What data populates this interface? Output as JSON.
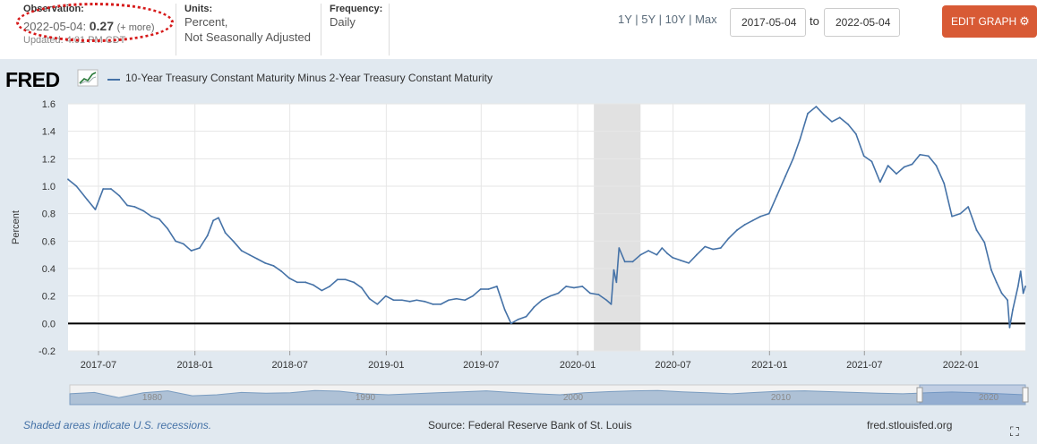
{
  "header": {
    "observation_label": "Observation:",
    "observation_date": "2022-05-04:",
    "observation_value": "0.27",
    "observation_more": "(+ more)",
    "updated": "Updated: 4:01 PM CDT",
    "units_label": "Units:",
    "units_line1": "Percent,",
    "units_line2": "Not Seasonally Adjusted",
    "frequency_label": "Frequency:",
    "frequency_value": "Daily",
    "ranges": [
      "1Y",
      "5Y",
      "10Y",
      "Max"
    ],
    "range_separator": " | ",
    "date_from": "2017-05-04",
    "date_to_label": "to",
    "date_to": "2022-05-04",
    "edit_button": "EDIT GRAPH",
    "annotation_color": "#d61a1a"
  },
  "logo": {
    "text": "FRED",
    "icon": "trend-chart-icon"
  },
  "legend": {
    "series_name": "10-Year Treasury Constant Maturity Minus 2-Year Treasury Constant Maturity",
    "color": "#4572a7"
  },
  "chart_data": {
    "type": "line",
    "ylabel": "Percent",
    "ylim": [
      -0.2,
      1.6
    ],
    "yticks": [
      "1.6",
      "1.4",
      "1.2",
      "1.0",
      "0.8",
      "0.6",
      "0.4",
      "0.2",
      "0.0",
      "-0.2"
    ],
    "xticks": [
      "2017-07",
      "2018-01",
      "2018-07",
      "2019-01",
      "2019-07",
      "2020-01",
      "2020-07",
      "2021-01",
      "2021-07",
      "2022-01"
    ],
    "xlim": [
      "2017-05-04",
      "2022-05-04"
    ],
    "recession": {
      "start": "2020-02-01",
      "end": "2020-04-30"
    },
    "zero_line": true,
    "series": [
      {
        "name": "10-Year Treasury Constant Maturity Minus 2-Year Treasury Constant Maturity",
        "color": "#4572a7",
        "x": [
          "2017-05-04",
          "2017-05-20",
          "2017-06-10",
          "2017-06-25",
          "2017-07-10",
          "2017-07-25",
          "2017-08-10",
          "2017-08-25",
          "2017-09-08",
          "2017-09-25",
          "2017-10-10",
          "2017-10-25",
          "2017-11-10",
          "2017-11-25",
          "2017-12-10",
          "2017-12-25",
          "2018-01-10",
          "2018-01-25",
          "2018-02-05",
          "2018-02-15",
          "2018-02-28",
          "2018-03-15",
          "2018-03-31",
          "2018-04-15",
          "2018-04-30",
          "2018-05-15",
          "2018-05-31",
          "2018-06-15",
          "2018-06-30",
          "2018-07-15",
          "2018-07-31",
          "2018-08-15",
          "2018-08-31",
          "2018-09-15",
          "2018-09-30",
          "2018-10-15",
          "2018-10-31",
          "2018-11-15",
          "2018-11-30",
          "2018-12-15",
          "2018-12-31",
          "2019-01-15",
          "2019-01-31",
          "2019-02-15",
          "2019-02-28",
          "2019-03-15",
          "2019-03-31",
          "2019-04-15",
          "2019-04-30",
          "2019-05-15",
          "2019-05-31",
          "2019-06-15",
          "2019-06-30",
          "2019-07-15",
          "2019-07-31",
          "2019-08-15",
          "2019-08-27",
          "2019-09-10",
          "2019-09-25",
          "2019-10-10",
          "2019-10-25",
          "2019-11-10",
          "2019-11-25",
          "2019-12-10",
          "2019-12-25",
          "2020-01-10",
          "2020-01-25",
          "2020-02-10",
          "2020-02-25",
          "2020-03-05",
          "2020-03-10",
          "2020-03-15",
          "2020-03-20",
          "2020-03-31",
          "2020-04-15",
          "2020-04-30",
          "2020-05-15",
          "2020-05-31",
          "2020-06-10",
          "2020-06-20",
          "2020-06-30",
          "2020-07-15",
          "2020-07-31",
          "2020-08-15",
          "2020-08-31",
          "2020-09-15",
          "2020-09-30",
          "2020-10-15",
          "2020-10-31",
          "2020-11-15",
          "2020-11-30",
          "2020-12-15",
          "2020-12-31",
          "2021-01-15",
          "2021-01-31",
          "2021-02-15",
          "2021-02-28",
          "2021-03-15",
          "2021-03-31",
          "2021-04-15",
          "2021-04-30",
          "2021-05-15",
          "2021-05-31",
          "2021-06-15",
          "2021-06-30",
          "2021-07-15",
          "2021-07-31",
          "2021-08-15",
          "2021-08-31",
          "2021-09-15",
          "2021-09-30",
          "2021-10-15",
          "2021-10-31",
          "2021-11-15",
          "2021-11-30",
          "2021-12-15",
          "2021-12-31",
          "2022-01-15",
          "2022-01-31",
          "2022-02-15",
          "2022-02-28",
          "2022-03-10",
          "2022-03-20",
          "2022-03-31",
          "2022-04-04",
          "2022-04-10",
          "2022-04-20",
          "2022-04-25",
          "2022-04-30",
          "2022-05-04"
        ],
        "values": [
          1.05,
          1.0,
          0.9,
          0.83,
          0.98,
          0.98,
          0.93,
          0.86,
          0.85,
          0.82,
          0.78,
          0.76,
          0.69,
          0.6,
          0.58,
          0.53,
          0.55,
          0.64,
          0.75,
          0.77,
          0.66,
          0.6,
          0.53,
          0.5,
          0.47,
          0.44,
          0.42,
          0.38,
          0.33,
          0.3,
          0.3,
          0.28,
          0.24,
          0.27,
          0.32,
          0.32,
          0.3,
          0.26,
          0.18,
          0.14,
          0.2,
          0.17,
          0.17,
          0.16,
          0.17,
          0.16,
          0.14,
          0.14,
          0.17,
          0.18,
          0.17,
          0.2,
          0.25,
          0.25,
          0.27,
          0.1,
          0.0,
          0.03,
          0.05,
          0.12,
          0.17,
          0.2,
          0.22,
          0.27,
          0.26,
          0.27,
          0.22,
          0.21,
          0.17,
          0.14,
          0.39,
          0.3,
          0.55,
          0.45,
          0.45,
          0.5,
          0.53,
          0.5,
          0.55,
          0.51,
          0.48,
          0.46,
          0.44,
          0.5,
          0.56,
          0.54,
          0.55,
          0.62,
          0.68,
          0.72,
          0.75,
          0.78,
          0.8,
          0.93,
          1.07,
          1.2,
          1.34,
          1.53,
          1.58,
          1.52,
          1.47,
          1.5,
          1.45,
          1.38,
          1.22,
          1.18,
          1.03,
          1.15,
          1.09,
          1.14,
          1.16,
          1.23,
          1.22,
          1.15,
          1.02,
          0.78,
          0.8,
          0.85,
          0.68,
          0.59,
          0.39,
          0.3,
          0.22,
          0.17,
          -0.03,
          0.1,
          0.27,
          0.38,
          0.22,
          0.27
        ]
      }
    ]
  },
  "navigator": {
    "labels": [
      "1980",
      "1990",
      "2000",
      "2010",
      "2020"
    ]
  },
  "footer": {
    "recession_note": "Shaded areas indicate U.S. recessions.",
    "source": "Source: Federal Reserve Bank of St. Louis",
    "site": "fred.stlouisfed.org",
    "fullscreen_icon": "fullscreen-icon"
  }
}
